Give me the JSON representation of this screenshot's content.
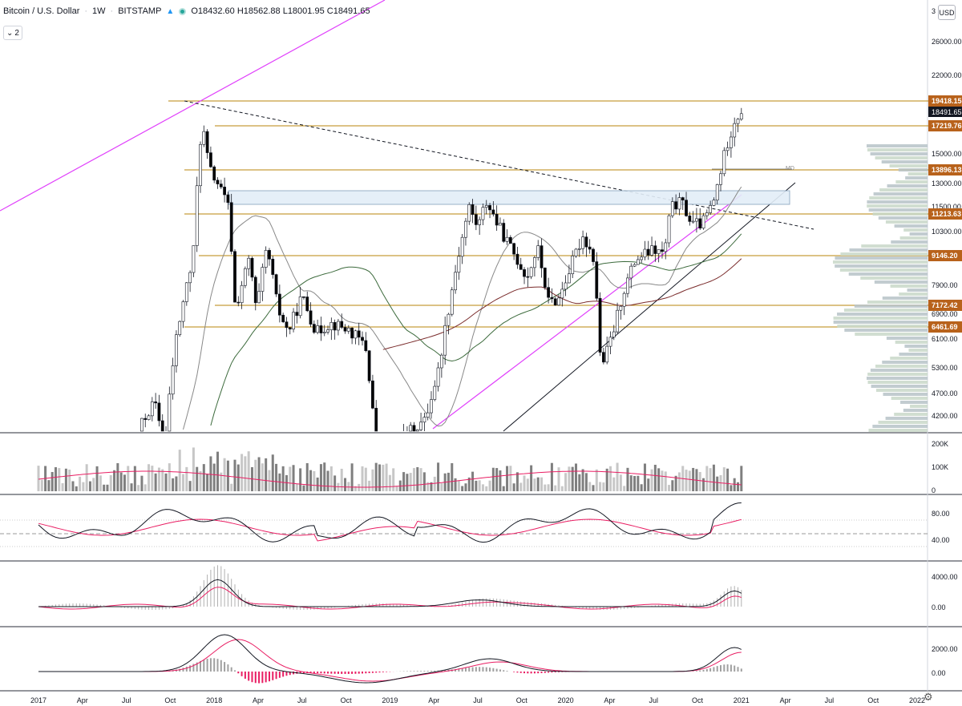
{
  "header": {
    "symbol": "Bitcoin / U.S. Dollar",
    "interval": "1W",
    "exchange": "BITSTAMP",
    "ohlc": "O18432.60 H18562.88 L18001.95 C18491.65"
  },
  "controls": {
    "collapse_count": "2",
    "currency": "USD"
  },
  "chart_data": {
    "type": "candlestick",
    "price_axis": {
      "ticks": [
        "3",
        "26000.00",
        "22000.00",
        "15000.00",
        "13000.00",
        "11500.00",
        "10300.00",
        "7900.00",
        "6900.00",
        "6100.00",
        "5300.00",
        "4700.00",
        "4200.00"
      ],
      "last_price": "18491.65",
      "levels": [
        "19418.15",
        "17219.76",
        "13896.13",
        "11213.63",
        "9146.20",
        "7172.42",
        "6461.69"
      ]
    },
    "time_axis": [
      "2017",
      "Apr",
      "Jul",
      "Oct",
      "2018",
      "Apr",
      "Jul",
      "Oct",
      "2019",
      "Apr",
      "Jul",
      "Oct",
      "2020",
      "Apr",
      "Jul",
      "Oct",
      "2021",
      "Apr",
      "Jul",
      "Oct",
      "2022"
    ],
    "volume_axis": [
      "200K",
      "100K",
      "0"
    ],
    "rsi_axis": [
      "80.00",
      "40.00"
    ],
    "osc1_axis": [
      "4000.00",
      "0.00"
    ],
    "osc2_axis": [
      "2000.00",
      "0.00"
    ],
    "annotation": "MD",
    "colors": {
      "up": "#ffffff",
      "down": "#000000",
      "level_line": "#b8860b",
      "level_tag": "#b8621b",
      "pink": "#e040fb",
      "signal": "#e91e63"
    }
  }
}
